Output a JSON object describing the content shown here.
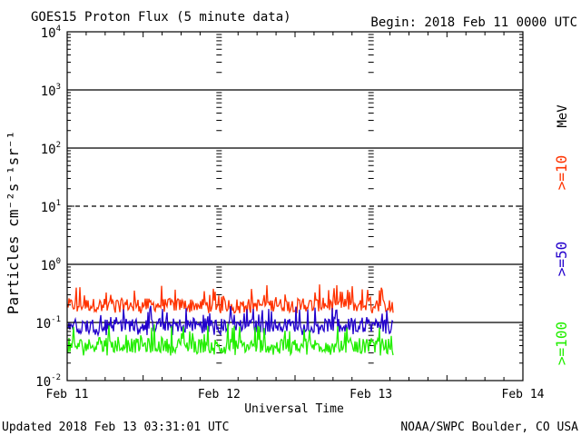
{
  "chart_data": {
    "type": "line",
    "title": "GOES15 Proton Flux (5 minute data)",
    "begin_label": "Begin: 2018 Feb 11 0000 UTC",
    "ylabel": "Particles cm⁻²s⁻¹sr⁻¹",
    "xlabel": "Universal Time",
    "x_ticks": [
      "Feb 11",
      "Feb 12",
      "Feb 13",
      "Feb 14"
    ],
    "x_range_days": [
      0,
      3
    ],
    "y_scale": "log",
    "ylim": [
      0.01,
      10000
    ],
    "y_ticks": [
      {
        "base": "10",
        "exp": "4"
      },
      {
        "base": "10",
        "exp": "3"
      },
      {
        "base": "10",
        "exp": "2"
      },
      {
        "base": "10",
        "exp": "1"
      },
      {
        "base": "10",
        "exp": "0"
      },
      {
        "base": "10",
        "exp": "-1"
      },
      {
        "base": "10",
        "exp": "-2"
      }
    ],
    "y_tick_values": [
      10000,
      1000,
      100,
      10,
      1,
      0.1,
      0.01
    ],
    "solid_gridlines": [
      1000,
      100,
      1,
      0.1
    ],
    "dashed_gridlines": [
      10
    ],
    "data_end_day": 2.146,
    "right_axis_unit": "MeV",
    "series": [
      {
        "name": ">=10",
        "color": "#ff3300",
        "baseline": 0.2,
        "min": 0.14,
        "max": 0.45
      },
      {
        "name": ">=50",
        "color": "#2200cc",
        "baseline": 0.09,
        "min": 0.06,
        "max": 0.2
      },
      {
        "name": ">=100",
        "color": "#22ee00",
        "baseline": 0.04,
        "min": 0.027,
        "max": 0.1
      }
    ]
  },
  "footer": {
    "updated": "Updated 2018 Feb 13 03:31:01 UTC",
    "credit": "NOAA/SWPC Boulder, CO USA"
  }
}
